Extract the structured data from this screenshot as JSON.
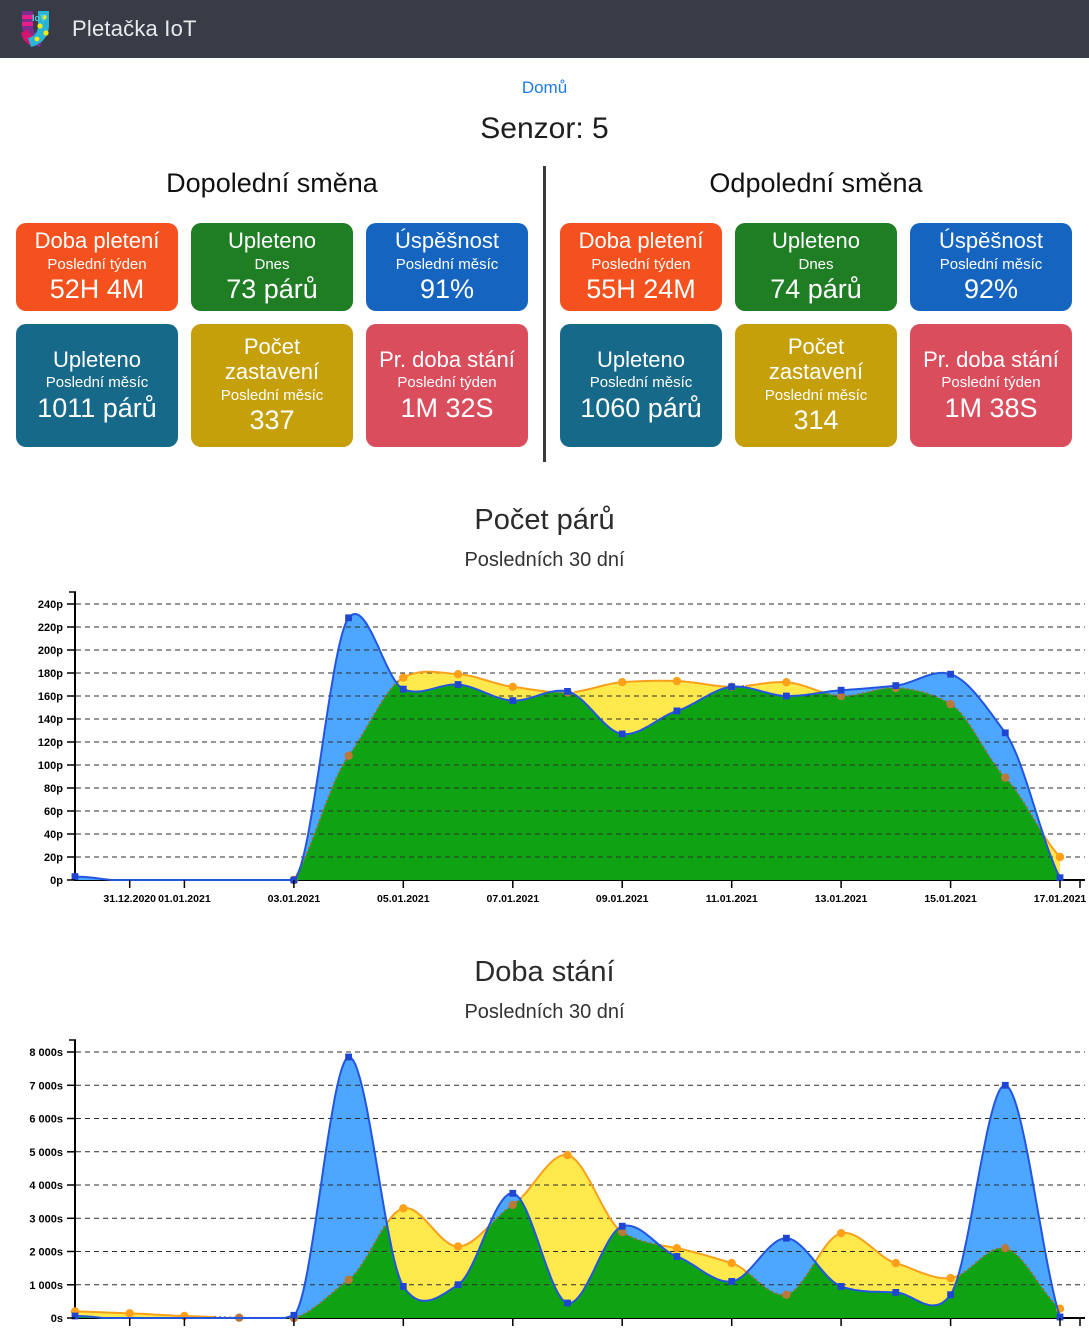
{
  "header": {
    "app_title": "Pletačka IoT",
    "logo": "sock-iot-logo"
  },
  "nav": {
    "home_label": "Domů"
  },
  "page": {
    "title": "Senzor: 5"
  },
  "shifts": [
    {
      "title": "Dopolední směna",
      "cards": [
        {
          "title": "Doba pletení",
          "subtitle": "Poslední týden",
          "value": "52H 4M",
          "color": "#F4511E"
        },
        {
          "title": "Upleteno",
          "subtitle": "Dnes",
          "value": "73 párů",
          "color": "#1F7D23"
        },
        {
          "title": "Úspěšnost",
          "subtitle": "Poslední měsíc",
          "value": "91%",
          "color": "#1565C0"
        },
        {
          "title": "Upleteno",
          "subtitle": "Poslední měsíc",
          "value": "1011 párů",
          "color": "#17698A"
        },
        {
          "title": "Počet zastavení",
          "subtitle": "Poslední měsíc",
          "value": "337",
          "color": "#C5A00A"
        },
        {
          "title": "Pr. doba stání",
          "subtitle": "Poslední týden",
          "value": "1M 32S",
          "color": "#D94D5C"
        }
      ]
    },
    {
      "title": "Odpolední směna",
      "cards": [
        {
          "title": "Doba pletení",
          "subtitle": "Poslední týden",
          "value": "55H 24M",
          "color": "#F4511E"
        },
        {
          "title": "Upleteno",
          "subtitle": "Dnes",
          "value": "74 párů",
          "color": "#1F7D23"
        },
        {
          "title": "Úspěšnost",
          "subtitle": "Poslední měsíc",
          "value": "92%",
          "color": "#1565C0"
        },
        {
          "title": "Upleteno",
          "subtitle": "Poslední měsíc",
          "value": "1060 párů",
          "color": "#17698A"
        },
        {
          "title": "Počet zastavení",
          "subtitle": "Poslední měsíc",
          "value": "314",
          "color": "#C5A00A"
        },
        {
          "title": "Pr. doba stání",
          "subtitle": "Poslední týden",
          "value": "1M 38S",
          "color": "#D94D5C"
        }
      ]
    }
  ],
  "chart_data": [
    {
      "type": "area",
      "title": "Počet párů",
      "subtitle": "Posledních 30 dní",
      "ylabel": "",
      "xlabel": "",
      "y_unit": "p",
      "ylim": [
        0,
        240
      ],
      "ystep": 20,
      "y_tick_labels": [
        "0p",
        "20p",
        "40p",
        "60p",
        "80p",
        "100p",
        "120p",
        "140p",
        "160p",
        "180p",
        "200p",
        "220p",
        "240p"
      ],
      "grid": "dashed",
      "legend": "none",
      "x": [
        "30.12.2020",
        "31.12.2020",
        "01.01.2021",
        "02.01.2021",
        "03.01.2021",
        "04.01.2021",
        "05.01.2021",
        "06.01.2021",
        "07.01.2021",
        "08.01.2021",
        "09.01.2021",
        "10.01.2021",
        "11.01.2021",
        "12.01.2021",
        "13.01.2021",
        "14.01.2021",
        "15.01.2021",
        "16.01.2021",
        "17.01.2021"
      ],
      "x_tick_labels": [
        "31.12.2020",
        "01.01.2021",
        "03.01.2021",
        "05.01.2021",
        "07.01.2021",
        "09.01.2021",
        "11.01.2021",
        "13.01.2021",
        "15.01.2021",
        "17.01.2021"
      ],
      "x_tick_day_indices": [
        1,
        2,
        4,
        6,
        8,
        10,
        12,
        14,
        16,
        18
      ],
      "series": [
        {
          "name": "blue_series",
          "marker": "square",
          "line_color": "#2256E0",
          "fill_color": "#4DA6FF",
          "marker_color": "#1E46D2",
          "values": [
            3,
            null,
            null,
            null,
            0,
            228,
            166,
            170,
            156,
            164,
            127,
            147,
            168,
            160,
            165,
            169,
            179,
            128,
            2
          ]
        },
        {
          "name": "orange_series",
          "marker": "circle",
          "line_color": "#F9A01B",
          "fill_color": "#FFE94D",
          "marker_color": "#FFA018",
          "values": [
            null,
            null,
            null,
            null,
            0,
            108,
            176,
            179,
            168,
            163,
            172,
            173,
            168,
            172,
            160,
            167,
            153,
            89,
            20
          ]
        }
      ],
      "overlap_fill": "#0FA314",
      "occluded_line_color": "#96712A",
      "occluded_marker_color": "#B87A3A"
    },
    {
      "type": "area",
      "title": "Doba stání",
      "subtitle": "Posledních 30 dní",
      "ylabel": "",
      "xlabel": "",
      "y_unit": "s",
      "ylim": [
        0,
        8000
      ],
      "ystep": 1000,
      "y_tick_labels": [
        "0s",
        "1 000s",
        "2 000s",
        "3 000s",
        "4 000s",
        "5 000s",
        "6 000s",
        "7 000s",
        "8 000s"
      ],
      "grid": "dashed",
      "legend": "none",
      "x": [
        "30.12.2020",
        "31.12.2020",
        "01.01.2021",
        "02.01.2021",
        "03.01.2021",
        "04.01.2021",
        "05.01.2021",
        "06.01.2021",
        "07.01.2021",
        "08.01.2021",
        "09.01.2021",
        "10.01.2021",
        "11.01.2021",
        "12.01.2021",
        "13.01.2021",
        "14.01.2021",
        "15.01.2021",
        "16.01.2021",
        "17.01.2021"
      ],
      "x_tick_labels": [
        "31.12.2020",
        "01.01.2021",
        "03.01.2021",
        "05.01.2021",
        "07.01.2021",
        "09.01.2021",
        "11.01.2021",
        "13.01.2021",
        "15.01.2021",
        "17.01.2021"
      ],
      "x_tick_day_indices": [
        1,
        2,
        4,
        6,
        8,
        10,
        12,
        14,
        16,
        18
      ],
      "series": [
        {
          "name": "blue_series",
          "marker": "square",
          "line_color": "#2256E0",
          "fill_color": "#4DA6FF",
          "marker_color": "#1E46D2",
          "values": [
            60,
            null,
            null,
            null,
            80,
            7850,
            950,
            1000,
            3750,
            450,
            2760,
            1850,
            1100,
            2400,
            950,
            770,
            700,
            7000,
            30
          ]
        },
        {
          "name": "orange_series",
          "marker": "circle",
          "line_color": "#F9A01B",
          "fill_color": "#FFE94D",
          "marker_color": "#FFA018",
          "values": [
            200,
            140,
            60,
            10,
            0,
            1150,
            3300,
            2150,
            3400,
            4900,
            2580,
            2100,
            1650,
            700,
            2550,
            1650,
            1200,
            2100,
            280
          ]
        }
      ],
      "overlap_fill": "#0FA314",
      "occluded_line_color": "#96712A",
      "occluded_marker_color": "#B87A3A"
    }
  ]
}
